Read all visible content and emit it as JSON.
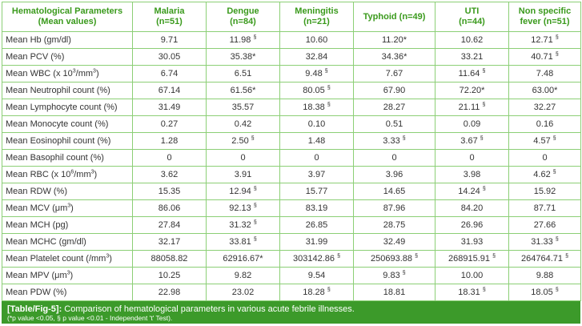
{
  "headers": [
    [
      "Hematological Parameters",
      "(Mean values)"
    ],
    [
      "Malaria",
      "(n=51)"
    ],
    [
      "Dengue",
      "(n=84)"
    ],
    [
      "Meningitis",
      "(n=21)"
    ],
    [
      "Typhoid (n=49)"
    ],
    [
      "UTI",
      "(n=44)"
    ],
    [
      "Non specific",
      "fever (n=51)"
    ]
  ],
  "rows": [
    {
      "param": "Mean Hb (gm/dl)",
      "cells": [
        [
          "9.71",
          ""
        ],
        [
          "11.98",
          "§"
        ],
        [
          "10.60",
          ""
        ],
        [
          "11.20*",
          ""
        ],
        [
          "10.62",
          ""
        ],
        [
          "12.71",
          "§"
        ]
      ]
    },
    {
      "param": "Mean PCV (%)",
      "cells": [
        [
          "30.05",
          ""
        ],
        [
          "35.38*",
          ""
        ],
        [
          "32.84",
          ""
        ],
        [
          "34.36*",
          ""
        ],
        [
          "33.21",
          ""
        ],
        [
          "40.71",
          "§"
        ]
      ]
    },
    {
      "param": "Mean WBC (x 10",
      "param_sup": "3",
      "param_tail": "/mm",
      "param_sup2": "3",
      "param_end": ")",
      "cells": [
        [
          "6.74",
          ""
        ],
        [
          "6.51",
          ""
        ],
        [
          "9.48",
          "§"
        ],
        [
          "7.67",
          ""
        ],
        [
          "11.64",
          "§"
        ],
        [
          "7.48",
          ""
        ]
      ]
    },
    {
      "param": "Mean Neutrophil count (%)",
      "cells": [
        [
          "67.14",
          ""
        ],
        [
          "61.56*",
          ""
        ],
        [
          "80.05",
          "§"
        ],
        [
          "67.90",
          ""
        ],
        [
          "72.20*",
          ""
        ],
        [
          "63.00*",
          ""
        ]
      ]
    },
    {
      "param": "Mean Lymphocyte count (%)",
      "cells": [
        [
          "31.49",
          ""
        ],
        [
          "35.57",
          ""
        ],
        [
          "18.38",
          "§"
        ],
        [
          "28.27",
          ""
        ],
        [
          "21.11",
          "§"
        ],
        [
          "32.27",
          ""
        ]
      ]
    },
    {
      "param": "Mean Monocyte count (%)",
      "cells": [
        [
          "0.27",
          ""
        ],
        [
          "0.42",
          ""
        ],
        [
          "0.10",
          ""
        ],
        [
          "0.51",
          ""
        ],
        [
          "0.09",
          ""
        ],
        [
          "0.16",
          ""
        ]
      ]
    },
    {
      "param": "Mean Eosinophil count (%)",
      "cells": [
        [
          "1.28",
          ""
        ],
        [
          "2.50",
          "§"
        ],
        [
          "1.48",
          ""
        ],
        [
          "3.33",
          "§"
        ],
        [
          "3.67",
          "§"
        ],
        [
          "4.57",
          "§"
        ]
      ]
    },
    {
      "param": "Mean Basophil count (%)",
      "cells": [
        [
          "0",
          ""
        ],
        [
          "0",
          ""
        ],
        [
          "0",
          ""
        ],
        [
          "0",
          ""
        ],
        [
          "0",
          ""
        ],
        [
          "0",
          ""
        ]
      ]
    },
    {
      "param": "Mean RBC (x 10",
      "param_sup": "6",
      "param_tail": "/mm",
      "param_sup2": "3",
      "param_end": ")",
      "cells": [
        [
          "3.62",
          ""
        ],
        [
          "3.91",
          ""
        ],
        [
          "3.97",
          ""
        ],
        [
          "3.96",
          ""
        ],
        [
          "3.98",
          ""
        ],
        [
          "4.62",
          "§"
        ]
      ]
    },
    {
      "param": "Mean RDW (%)",
      "cells": [
        [
          "15.35",
          ""
        ],
        [
          "12.94",
          "§"
        ],
        [
          "15.77",
          ""
        ],
        [
          "14.65",
          ""
        ],
        [
          "14.24",
          "§"
        ],
        [
          "15.92",
          ""
        ]
      ]
    },
    {
      "param": "Mean MCV (μm",
      "param_sup": "3",
      "param_end": ")",
      "cells": [
        [
          "86.06",
          ""
        ],
        [
          "92.13",
          "§"
        ],
        [
          "83.19",
          ""
        ],
        [
          "87.96",
          ""
        ],
        [
          "84.20",
          ""
        ],
        [
          "87.71",
          ""
        ]
      ]
    },
    {
      "param": "Mean MCH (pg)",
      "cells": [
        [
          "27.84",
          ""
        ],
        [
          "31.32",
          "§"
        ],
        [
          "26.85",
          ""
        ],
        [
          "28.75",
          ""
        ],
        [
          "26.96",
          ""
        ],
        [
          "27.66",
          ""
        ]
      ]
    },
    {
      "param": "Mean MCHC (gm/dl)",
      "cells": [
        [
          "32.17",
          ""
        ],
        [
          "33.81",
          "§"
        ],
        [
          "31.99",
          ""
        ],
        [
          "32.49",
          ""
        ],
        [
          "31.93",
          ""
        ],
        [
          "31.33",
          "§"
        ]
      ]
    },
    {
      "param": "Mean Platelet count (/mm",
      "param_sup": "3",
      "param_end": ")",
      "cells": [
        [
          "88058.82",
          ""
        ],
        [
          "62916.67*",
          ""
        ],
        [
          "303142.86",
          "§"
        ],
        [
          "250693.88",
          "§"
        ],
        [
          "268915.91",
          "§"
        ],
        [
          "264764.71",
          "§"
        ]
      ]
    },
    {
      "param": "Mean MPV (μm",
      "param_sup": "3",
      "param_end": ")",
      "cells": [
        [
          "10.25",
          ""
        ],
        [
          "9.82",
          ""
        ],
        [
          "9.54",
          ""
        ],
        [
          "9.83",
          "§"
        ],
        [
          "10.00",
          ""
        ],
        [
          "9.88",
          ""
        ]
      ]
    },
    {
      "param": "Mean PDW (%)",
      "cells": [
        [
          "22.98",
          ""
        ],
        [
          "23.02",
          ""
        ],
        [
          "18.28",
          "§"
        ],
        [
          "18.81",
          ""
        ],
        [
          "18.31",
          "§"
        ],
        [
          "18.05",
          "§"
        ]
      ]
    }
  ],
  "caption": {
    "ref": "[Table/Fig-5]:",
    "text": " Comparison of hematological parameters in various acute febrile illnesses.",
    "note": "(*p value <0.05, § p value <0.01 - Independent 't' Test)."
  }
}
